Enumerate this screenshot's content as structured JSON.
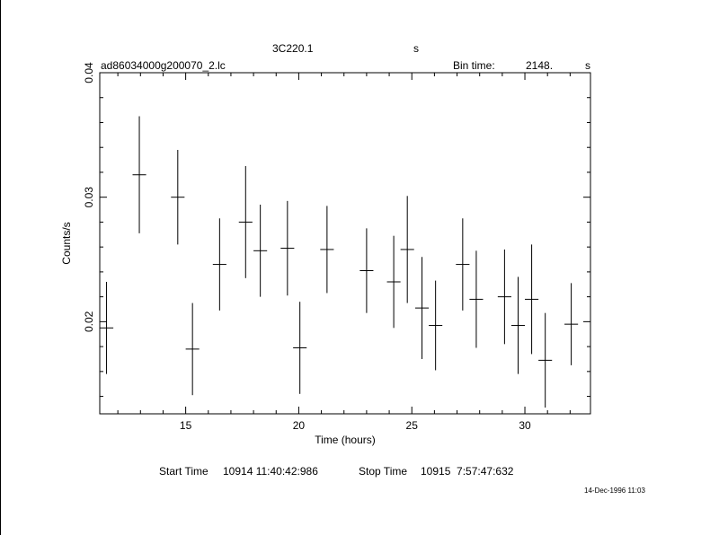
{
  "header": {
    "source": "3C220.1",
    "unit": "s",
    "file": "ad86034000g200070_2.lc",
    "bin_label": "Bin time:",
    "bin_value": "2148.",
    "bin_unit": "s"
  },
  "footer": {
    "start_label": "Start Time",
    "start_value": "10914 11:40:42:986",
    "stop_label": "Stop Time",
    "stop_value": "10915  7:57:47:632",
    "timestamp": "14-Dec-1996 11:03"
  },
  "chart_data": {
    "type": "scatter",
    "title": "",
    "xlabel": "Time (hours)",
    "ylabel": "Counts/s",
    "xlim": [
      11.2,
      32.9
    ],
    "ylim": [
      0.0126,
      0.04
    ],
    "xticks": [
      15,
      20,
      25,
      30
    ],
    "yticks": [
      0.02,
      0.03,
      0.04
    ],
    "xtick_labels": [
      "15",
      "20",
      "25",
      "30"
    ],
    "ytick_labels": [
      "0.02",
      "0.03",
      "0.04"
    ],
    "grid": false,
    "points": [
      {
        "x": 11.5,
        "y": 0.0195,
        "xerr": 0.3,
        "yerr": 0.0037
      },
      {
        "x": 12.95,
        "y": 0.0318,
        "xerr": 0.3,
        "yerr": 0.0047
      },
      {
        "x": 14.65,
        "y": 0.03,
        "xerr": 0.3,
        "yerr": 0.0038
      },
      {
        "x": 15.3,
        "y": 0.0178,
        "xerr": 0.3,
        "yerr": 0.0037
      },
      {
        "x": 16.5,
        "y": 0.0246,
        "xerr": 0.3,
        "yerr": 0.0037
      },
      {
        "x": 17.65,
        "y": 0.028,
        "xerr": 0.3,
        "yerr": 0.0045
      },
      {
        "x": 18.3,
        "y": 0.0257,
        "xerr": 0.3,
        "yerr": 0.0037
      },
      {
        "x": 19.5,
        "y": 0.0259,
        "xerr": 0.3,
        "yerr": 0.0038
      },
      {
        "x": 20.05,
        "y": 0.0179,
        "xerr": 0.3,
        "yerr": 0.0037
      },
      {
        "x": 21.25,
        "y": 0.0258,
        "xerr": 0.3,
        "yerr": 0.0035
      },
      {
        "x": 23.0,
        "y": 0.0241,
        "xerr": 0.3,
        "yerr": 0.0034
      },
      {
        "x": 24.2,
        "y": 0.0232,
        "xerr": 0.3,
        "yerr": 0.0037
      },
      {
        "x": 24.8,
        "y": 0.0258,
        "xerr": 0.3,
        "yerr": 0.0043
      },
      {
        "x": 25.45,
        "y": 0.0211,
        "xerr": 0.3,
        "yerr": 0.0041
      },
      {
        "x": 26.05,
        "y": 0.0197,
        "xerr": 0.3,
        "yerr": 0.0036
      },
      {
        "x": 27.25,
        "y": 0.0246,
        "xerr": 0.3,
        "yerr": 0.0037
      },
      {
        "x": 27.85,
        "y": 0.0218,
        "xerr": 0.3,
        "yerr": 0.0039
      },
      {
        "x": 29.1,
        "y": 0.022,
        "xerr": 0.3,
        "yerr": 0.0038
      },
      {
        "x": 29.7,
        "y": 0.0197,
        "xerr": 0.3,
        "yerr": 0.0039
      },
      {
        "x": 30.3,
        "y": 0.0218,
        "xerr": 0.3,
        "yerr": 0.0044
      },
      {
        "x": 30.9,
        "y": 0.0169,
        "xerr": 0.3,
        "yerr": 0.0038
      },
      {
        "x": 32.05,
        "y": 0.0198,
        "xerr": 0.3,
        "yerr": 0.0033
      }
    ]
  }
}
